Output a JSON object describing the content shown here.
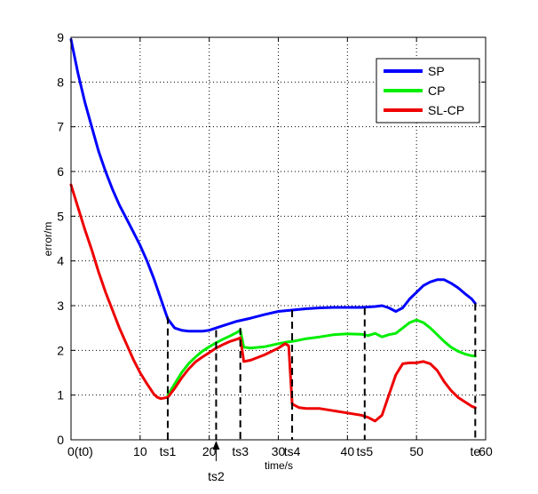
{
  "chart_data": {
    "type": "line",
    "title": "",
    "xlabel": "time/s",
    "ylabel": "error/m",
    "xlim": [
      0,
      60
    ],
    "ylim": [
      0,
      9
    ],
    "grid": true,
    "legend_position": "top-right",
    "x_ticks": [
      {
        "value": 0,
        "label": "0(t0)"
      },
      {
        "value": 10,
        "label": "10"
      },
      {
        "value": 20,
        "label": "20"
      },
      {
        "value": 30,
        "label": "30"
      },
      {
        "value": 40,
        "label": "40"
      },
      {
        "value": 50,
        "label": "50"
      },
      {
        "value": 60,
        "label": "60"
      }
    ],
    "y_ticks": [
      0,
      1,
      2,
      3,
      4,
      5,
      6,
      7,
      8,
      9
    ],
    "markers": [
      {
        "label": "ts1",
        "x": 14,
        "y_top": 2.75
      },
      {
        "label": "ts2",
        "x": 21,
        "y_top": 2.45,
        "arrow": true
      },
      {
        "label": "ts3",
        "x": 24.5,
        "y_top": 2.5
      },
      {
        "label": "ts4",
        "x": 32,
        "y_top": 2.9
      },
      {
        "label": "ts5",
        "x": 42.5,
        "y_top": 2.95
      },
      {
        "label": "te",
        "x": 58.5,
        "y_top": 3.05
      }
    ],
    "series": [
      {
        "name": "SP",
        "color": "#0000ff",
        "x": [
          0,
          1,
          2,
          3,
          4,
          5,
          6,
          7,
          8,
          9,
          10,
          11,
          12,
          13,
          14,
          15,
          16,
          17,
          18,
          19,
          20,
          22,
          24,
          26,
          28,
          30,
          32,
          34,
          36,
          38,
          40,
          42,
          44,
          45,
          46,
          47,
          48,
          49,
          50,
          51,
          52,
          53,
          54,
          55,
          56,
          57,
          58,
          58.5
        ],
        "y": [
          8.95,
          8.2,
          7.55,
          7.0,
          6.45,
          6.0,
          5.6,
          5.25,
          4.95,
          4.65,
          4.35,
          4.0,
          3.6,
          3.15,
          2.7,
          2.5,
          2.45,
          2.43,
          2.43,
          2.43,
          2.45,
          2.55,
          2.65,
          2.72,
          2.8,
          2.87,
          2.9,
          2.93,
          2.95,
          2.96,
          2.96,
          2.96,
          2.98,
          3.0,
          2.95,
          2.87,
          2.95,
          3.15,
          3.3,
          3.45,
          3.53,
          3.58,
          3.58,
          3.5,
          3.4,
          3.27,
          3.15,
          3.05
        ]
      },
      {
        "name": "CP",
        "color": "#00ee00",
        "x": [
          14,
          15,
          16,
          17,
          18,
          19,
          20,
          21,
          22,
          23,
          24,
          24.5,
          25,
          26,
          28,
          30,
          31,
          32,
          33,
          34,
          36,
          38,
          40,
          42,
          43,
          44,
          45,
          46,
          47,
          48,
          49,
          50,
          51,
          52,
          53,
          54,
          55,
          56,
          57,
          58,
          58.5
        ],
        "y": [
          1.0,
          1.25,
          1.5,
          1.7,
          1.85,
          1.98,
          2.08,
          2.17,
          2.25,
          2.32,
          2.4,
          2.45,
          2.07,
          2.05,
          2.08,
          2.15,
          2.18,
          2.2,
          2.23,
          2.26,
          2.3,
          2.35,
          2.37,
          2.36,
          2.33,
          2.38,
          2.3,
          2.35,
          2.38,
          2.5,
          2.62,
          2.68,
          2.62,
          2.5,
          2.35,
          2.2,
          2.07,
          1.98,
          1.92,
          1.88,
          1.87
        ]
      },
      {
        "name": "SL-CP",
        "color": "#ee0000",
        "x": [
          0,
          1,
          2,
          3,
          4,
          5,
          6,
          7,
          8,
          9,
          10,
          11,
          12,
          12.5,
          13,
          14,
          15,
          16,
          17,
          18,
          19,
          20,
          21,
          22,
          23,
          24,
          24.5,
          25,
          26,
          28,
          30,
          31,
          31.5,
          32,
          33,
          34,
          36,
          38,
          40,
          42,
          43,
          44,
          45,
          46,
          47,
          48,
          49,
          50,
          51,
          52,
          53,
          54,
          55,
          56,
          57,
          58,
          58.5
        ],
        "y": [
          5.7,
          5.2,
          4.7,
          4.25,
          3.75,
          3.3,
          2.9,
          2.5,
          2.15,
          1.8,
          1.5,
          1.25,
          1.02,
          0.95,
          0.92,
          0.95,
          1.15,
          1.38,
          1.58,
          1.74,
          1.85,
          1.95,
          2.05,
          2.13,
          2.2,
          2.25,
          2.28,
          1.75,
          1.78,
          1.9,
          2.05,
          2.15,
          2.1,
          0.8,
          0.72,
          0.7,
          0.7,
          0.65,
          0.6,
          0.55,
          0.5,
          0.42,
          0.55,
          1.0,
          1.45,
          1.7,
          1.72,
          1.72,
          1.75,
          1.7,
          1.55,
          1.3,
          1.1,
          0.95,
          0.85,
          0.75,
          0.72
        ]
      }
    ]
  }
}
